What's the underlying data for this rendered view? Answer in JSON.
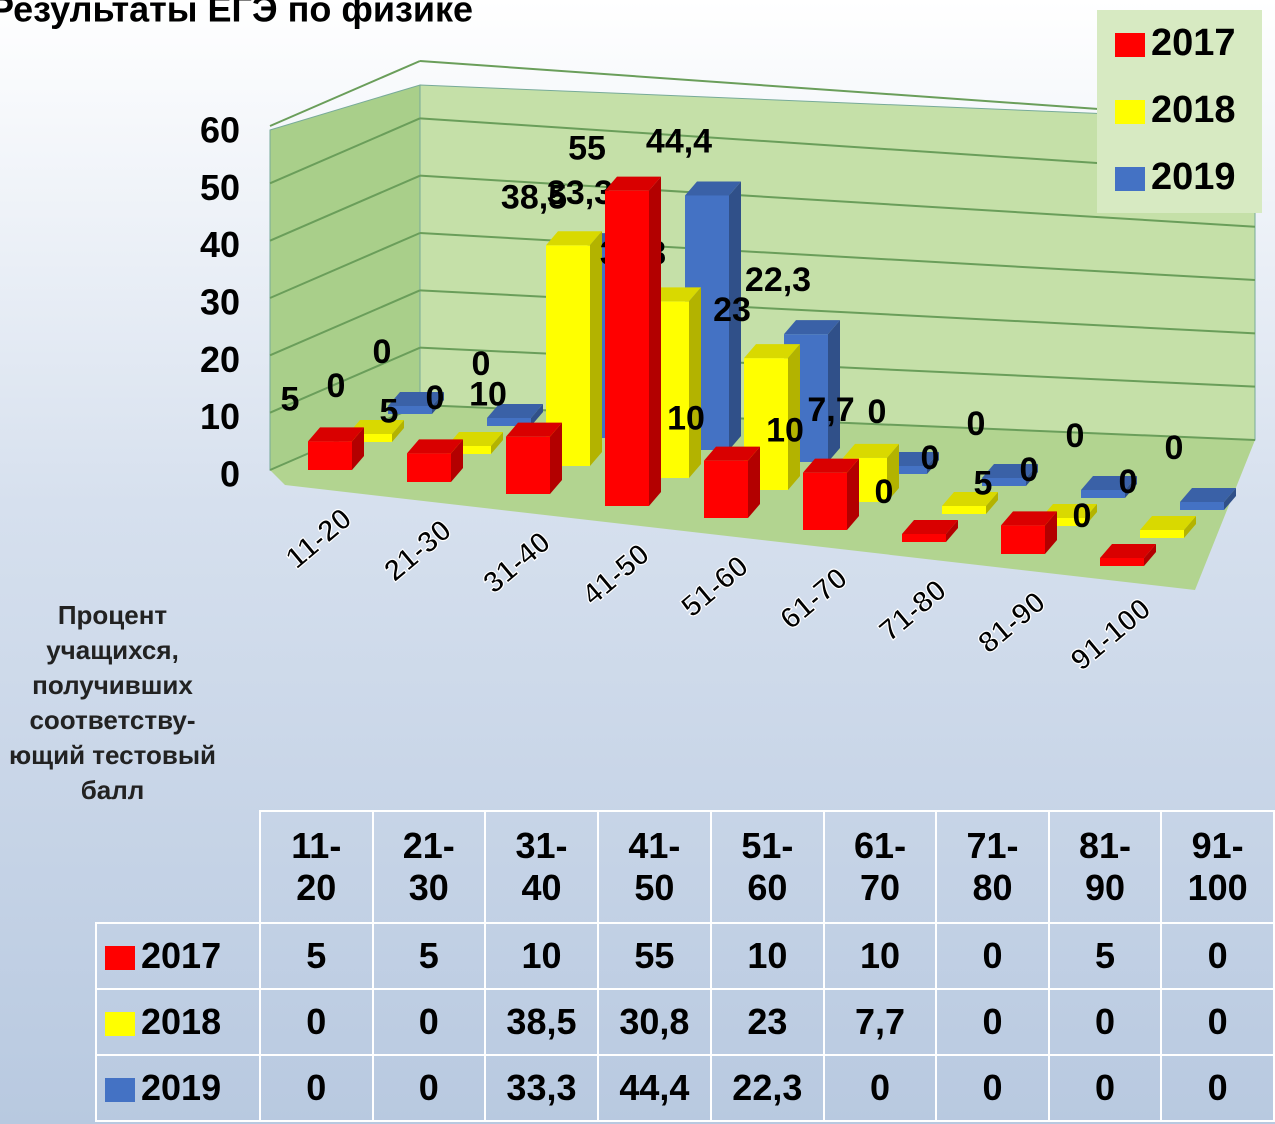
{
  "chart_data": {
    "type": "bar3d",
    "title": "Результаты ЕГЭ по физике",
    "categories": [
      "11-20",
      "21-30",
      "31-40",
      "41-50",
      "51-60",
      "61-70",
      "71-80",
      "81-90",
      "91-100"
    ],
    "series": [
      {
        "name": "2017",
        "color": "#ff0000",
        "values": [
          5,
          5,
          10,
          55,
          10,
          10,
          0,
          5,
          0
        ]
      },
      {
        "name": "2018",
        "color": "#ffff00",
        "values": [
          0,
          0,
          38.5,
          30.8,
          23,
          7.7,
          0,
          0,
          0
        ],
        "value_labels": [
          "0",
          "0",
          "38,5",
          "30,8",
          "23",
          "7,7",
          "0",
          "0",
          "0"
        ]
      },
      {
        "name": "2019",
        "color": "#4472c4",
        "values": [
          0,
          0,
          33.3,
          44.4,
          22.3,
          0,
          0,
          0,
          0
        ],
        "value_labels": [
          "0",
          "0",
          "33,3",
          "44,4",
          "22,3",
          "0",
          "0",
          "0",
          "0"
        ]
      }
    ],
    "ylim": [
      0,
      60
    ],
    "yticks": [
      0,
      10,
      20,
      30,
      40,
      50,
      60
    ],
    "grid": true,
    "legend": "top-right",
    "table_label": "Процент учащихся, получивших соответству-ющий тестовый балл"
  }
}
